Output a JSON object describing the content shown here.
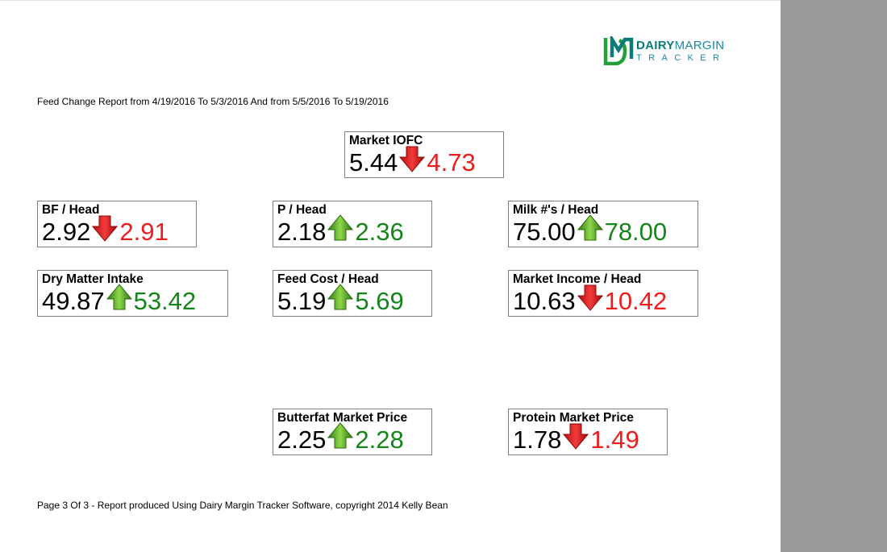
{
  "logo": {
    "line1_bold": "DAIRY",
    "line1_light": "MARGIN",
    "line2": "TRACKER"
  },
  "report_title": "Feed Change Report from 4/19/2016 To 5/3/2016 And from 5/5/2016 To 5/19/2016",
  "footer": "Page 3 Of 3 - Report produced Using Dairy Margin Tracker Software, copyright 2014 Kelly Bean",
  "colors": {
    "down": "#ee1c1c",
    "up": "#15851a",
    "side_panel": "#9a9a9a"
  },
  "metrics": [
    {
      "key": "market-iofc",
      "label": "Market IOFC",
      "before": "5.44",
      "after": "4.73",
      "direction": "down"
    },
    {
      "key": "bf-head",
      "label": "BF / Head",
      "before": "2.92",
      "after": "2.91",
      "direction": "down"
    },
    {
      "key": "p-head",
      "label": "P / Head",
      "before": "2.18",
      "after": "2.36",
      "direction": "up"
    },
    {
      "key": "milk-head",
      "label": "Milk #'s / Head",
      "before": "75.00",
      "after": "78.00",
      "direction": "up"
    },
    {
      "key": "dry-matter-intake",
      "label": "Dry Matter Intake",
      "before": "49.87",
      "after": "53.42",
      "direction": "up"
    },
    {
      "key": "feed-cost-head",
      "label": "Feed Cost / Head",
      "before": "5.19",
      "after": "5.69",
      "direction": "up"
    },
    {
      "key": "market-income-head",
      "label": "Market Income / Head",
      "before": "10.63",
      "after": "10.42",
      "direction": "down"
    },
    {
      "key": "butterfat-market-price",
      "label": "Butterfat Market Price",
      "before": "2.25",
      "after": "2.28",
      "direction": "up"
    },
    {
      "key": "protein-market-price",
      "label": "Protein Market Price",
      "before": "1.78",
      "after": "1.49",
      "direction": "down"
    }
  ]
}
